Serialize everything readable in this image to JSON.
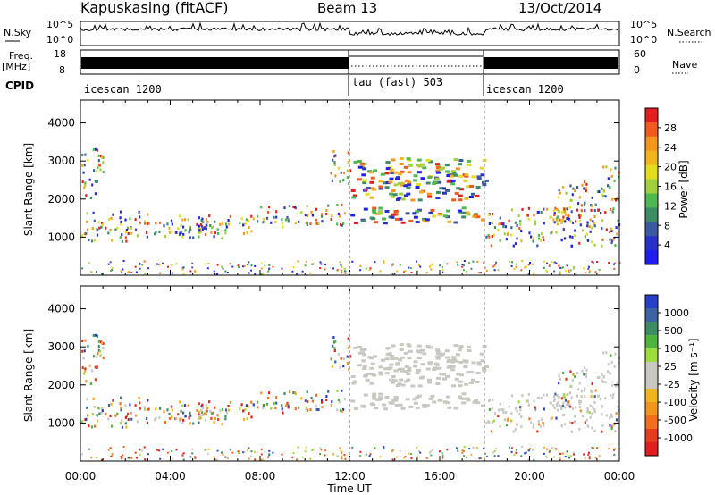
{
  "header": {
    "station": "Kapuskasing (fitACF)",
    "beam": "Beam 13",
    "date": "13/Oct/2014"
  },
  "strip": {
    "nsky_label": "N.Sky",
    "nsky_ticks": [
      "10^5",
      "10^0"
    ],
    "nsearch_label": "N.Search",
    "nsearch_ticks": [
      "10^5",
      "10^0"
    ],
    "freq_label": "Freq.",
    "freq_unit": "[MHz]",
    "freq_ticks": [
      "18",
      "8"
    ],
    "nave_label": "Nave",
    "nave_ticks": [
      "60",
      "0"
    ],
    "cpid_label": "CPID",
    "modes": [
      {
        "name": "icescan 1200",
        "start": 0,
        "end": 12
      },
      {
        "name": "tau (fast) 503",
        "start": 12,
        "end": 18
      },
      {
        "name": "icescan 1200",
        "start": 18,
        "end": 24
      }
    ]
  },
  "power_scale": {
    "label": "Power [dB]",
    "ticks": [
      "28",
      "24",
      "20",
      "16",
      "12",
      "8",
      "4"
    ],
    "colors": [
      "#e41e1e",
      "#f05a1e",
      "#f4961e",
      "#f0b41e",
      "#e6dc1e",
      "#a0d03c",
      "#50b850",
      "#3c8c64",
      "#3c5aa0",
      "#2832c8",
      "#1e1ef0"
    ]
  },
  "velocity_scale": {
    "label": "Velocity [m s⁻¹]",
    "ticks": [
      "1000",
      "500",
      "100",
      "25",
      "-25",
      "-100",
      "-500",
      "-1000"
    ],
    "colors": [
      "#2840c8",
      "#3c64a0",
      "#3c8c64",
      "#50b43c",
      "#9cdc3c",
      "#c8c8c0",
      "#c8c8c0",
      "#f0b41e",
      "#f0961e",
      "#f06e1e",
      "#e63c1e",
      "#e01e1e"
    ]
  },
  "chart_data": {
    "type": "heatmap",
    "title": "Kapuskasing (fitACF)  Beam 13  13/Oct/2014",
    "xlabel": "Time UT",
    "ylabel": "Slant Range [km]",
    "xlim": [
      "00:00",
      "24:00"
    ],
    "ylim": [
      0,
      4600
    ],
    "x_ticks": [
      "00:00",
      "04:00",
      "08:00",
      "12:00",
      "16:00",
      "20:00",
      "00:00"
    ],
    "y_ticks": [
      "1000",
      "2000",
      "3000",
      "4000"
    ],
    "panels": [
      {
        "quantity": "Power",
        "unit": "dB",
        "range": [
          0,
          30
        ]
      },
      {
        "quantity": "Velocity",
        "unit": "m s^-1",
        "range": [
          -1000,
          1000
        ]
      }
    ],
    "scatter_bands": [
      {
        "t_start": 0.0,
        "t_end": 3.0,
        "range_low": 900,
        "range_high": 1700
      },
      {
        "t_start": 0.0,
        "t_end": 1.0,
        "range_low": 2000,
        "range_high": 3400
      },
      {
        "t_start": 3.0,
        "t_end": 6.5,
        "range_low": 1000,
        "range_high": 1500
      },
      {
        "t_start": 4.0,
        "t_end": 8.0,
        "range_low": 1100,
        "range_high": 1600
      },
      {
        "t_start": 8.0,
        "t_end": 11.8,
        "range_low": 1300,
        "range_high": 1900
      },
      {
        "t_start": 11.0,
        "t_end": 12.0,
        "range_low": 2400,
        "range_high": 3300
      },
      {
        "t_start": 12.0,
        "t_end": 18.0,
        "range_low": 1400,
        "range_high": 1800
      },
      {
        "t_start": 12.0,
        "t_end": 18.0,
        "range_low": 2000,
        "range_high": 3100
      },
      {
        "t_start": 18.0,
        "t_end": 24.0,
        "range_low": 800,
        "range_high": 1800
      },
      {
        "t_start": 21.0,
        "t_end": 23.0,
        "range_low": 1400,
        "range_high": 2500
      },
      {
        "t_start": 23.0,
        "t_end": 24.0,
        "range_low": 2000,
        "range_high": 2900
      }
    ]
  }
}
